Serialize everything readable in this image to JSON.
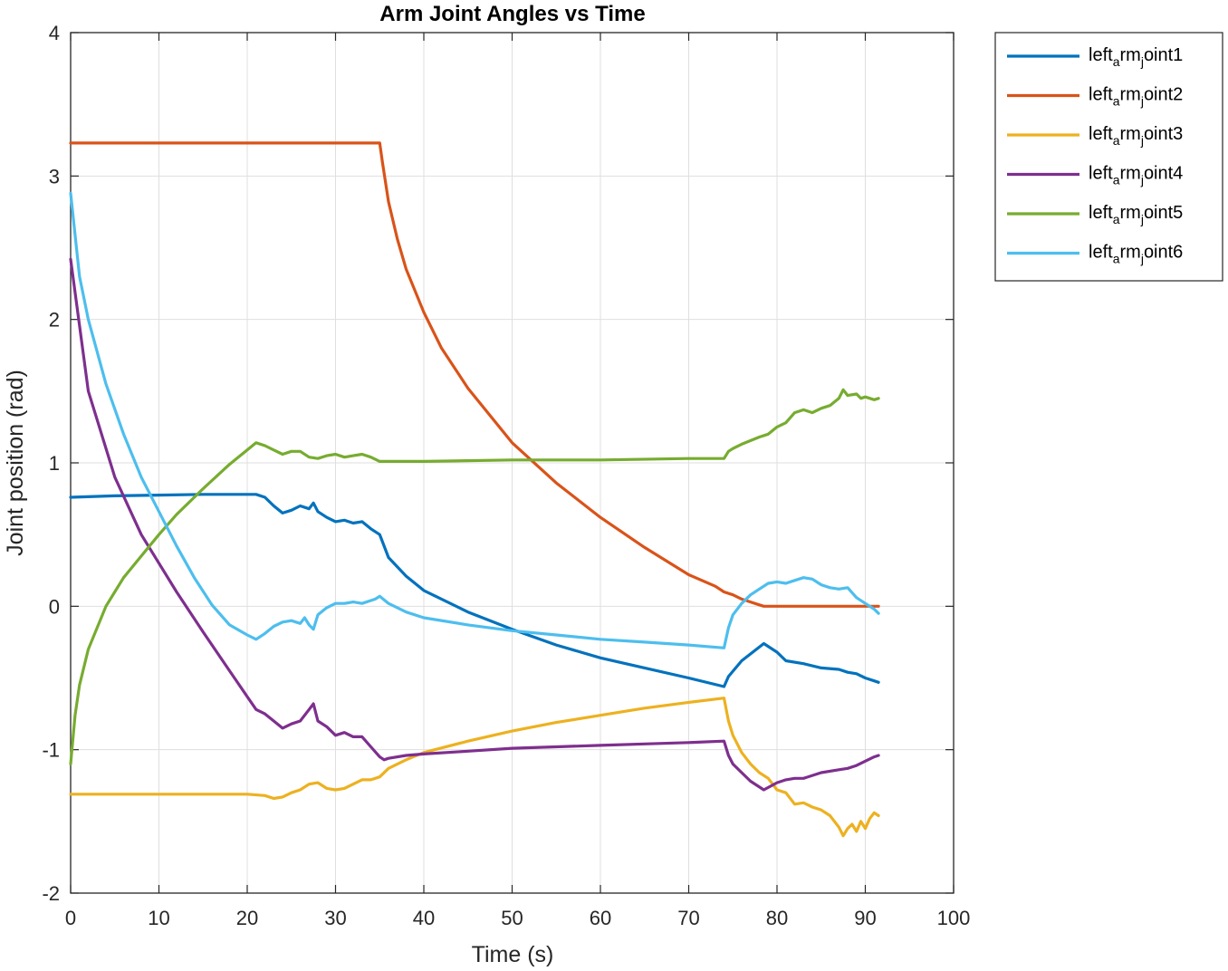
{
  "chart_data": {
    "type": "line",
    "title": "Arm Joint Angles vs Time",
    "xlabel": "Time (s)",
    "ylabel": "Joint position (rad)",
    "xlim": [
      0,
      100
    ],
    "ylim": [
      -2,
      4
    ],
    "xticks": [
      "0",
      "10",
      "20",
      "30",
      "40",
      "50",
      "60",
      "70",
      "80",
      "90",
      "100"
    ],
    "yticks": [
      "-2",
      "-1",
      "0",
      "1",
      "2",
      "3",
      "4"
    ],
    "grid": true,
    "legend_position": "outside-top-right",
    "series": [
      {
        "name": "left_arm_joint1",
        "name_parts": [
          "left",
          "a",
          "rm",
          "j",
          "oint1"
        ],
        "color": "#0072BD",
        "x": [
          0,
          5,
          10,
          15,
          20,
          21,
          22,
          23,
          24,
          25,
          26,
          27,
          27.5,
          28,
          29,
          30,
          31,
          32,
          33,
          34,
          35,
          36,
          38,
          40,
          45,
          50,
          55,
          60,
          65,
          70,
          74,
          74.5,
          76,
          78.5,
          80,
          81,
          83,
          85,
          87,
          88,
          89,
          90,
          91,
          91.5
        ],
        "y": [
          0.76,
          0.77,
          0.775,
          0.78,
          0.78,
          0.78,
          0.76,
          0.7,
          0.65,
          0.67,
          0.7,
          0.68,
          0.72,
          0.66,
          0.62,
          0.59,
          0.6,
          0.58,
          0.59,
          0.54,
          0.5,
          0.34,
          0.21,
          0.11,
          -0.04,
          -0.16,
          -0.27,
          -0.36,
          -0.43,
          -0.5,
          -0.56,
          -0.49,
          -0.38,
          -0.26,
          -0.32,
          -0.38,
          -0.4,
          -0.43,
          -0.44,
          -0.46,
          -0.47,
          -0.5,
          -0.52,
          -0.53
        ]
      },
      {
        "name": "left_arm_joint2",
        "name_parts": [
          "left",
          "a",
          "rm",
          "j",
          "oint2"
        ],
        "color": "#D95319",
        "x": [
          0,
          10,
          20,
          30,
          35,
          35.3,
          36,
          37,
          38,
          40,
          42,
          45,
          50,
          55,
          60,
          65,
          70,
          73,
          74,
          75,
          76,
          77,
          78,
          78.5,
          80,
          85,
          90,
          91.5
        ],
        "y": [
          3.23,
          3.23,
          3.23,
          3.23,
          3.23,
          3.1,
          2.82,
          2.56,
          2.35,
          2.05,
          1.8,
          1.52,
          1.14,
          0.86,
          0.62,
          0.41,
          0.22,
          0.14,
          0.1,
          0.08,
          0.05,
          0.03,
          0.01,
          0.0,
          0.0,
          0.0,
          0.0,
          0.0
        ]
      },
      {
        "name": "left_arm_joint3",
        "name_parts": [
          "left",
          "a",
          "rm",
          "j",
          "oint3"
        ],
        "color": "#EDB120",
        "x": [
          0,
          10,
          20,
          22,
          23,
          24,
          25,
          26,
          27,
          28,
          29,
          30,
          31,
          32,
          33,
          34,
          35,
          36,
          38,
          40,
          45,
          50,
          55,
          60,
          65,
          70,
          74,
          74.5,
          75,
          76,
          77,
          78,
          79,
          80,
          81,
          82,
          83,
          84,
          85,
          86,
          87,
          87.5,
          88,
          88.5,
          89,
          89.5,
          90,
          90.5,
          91,
          91.5
        ],
        "y": [
          -1.31,
          -1.31,
          -1.31,
          -1.32,
          -1.34,
          -1.33,
          -1.3,
          -1.28,
          -1.24,
          -1.23,
          -1.27,
          -1.28,
          -1.27,
          -1.24,
          -1.21,
          -1.21,
          -1.19,
          -1.13,
          -1.07,
          -1.02,
          -0.94,
          -0.87,
          -0.81,
          -0.76,
          -0.71,
          -0.67,
          -0.64,
          -0.8,
          -0.9,
          -1.02,
          -1.1,
          -1.16,
          -1.2,
          -1.28,
          -1.3,
          -1.38,
          -1.37,
          -1.4,
          -1.42,
          -1.46,
          -1.54,
          -1.6,
          -1.55,
          -1.52,
          -1.57,
          -1.5,
          -1.55,
          -1.48,
          -1.44,
          -1.46
        ]
      },
      {
        "name": "left_arm_joint4",
        "name_parts": [
          "left",
          "a",
          "rm",
          "j",
          "oint4"
        ],
        "color": "#7E2F8E",
        "x": [
          0,
          2,
          5,
          8,
          10,
          12,
          15,
          18,
          20,
          21,
          22,
          23,
          24,
          25,
          26,
          27,
          27.5,
          28,
          29,
          30,
          31,
          32,
          33,
          34,
          35,
          35.5,
          36,
          38,
          40,
          45,
          50,
          55,
          60,
          65,
          70,
          74,
          74.5,
          75,
          76,
          77,
          78.5,
          80,
          81,
          82,
          83,
          85,
          87,
          88,
          89,
          90,
          91,
          91.5
        ],
        "y": [
          2.42,
          1.5,
          0.9,
          0.5,
          0.3,
          0.1,
          -0.18,
          -0.45,
          -0.63,
          -0.72,
          -0.75,
          -0.8,
          -0.85,
          -0.82,
          -0.8,
          -0.72,
          -0.68,
          -0.8,
          -0.84,
          -0.9,
          -0.88,
          -0.91,
          -0.91,
          -0.98,
          -1.05,
          -1.07,
          -1.06,
          -1.04,
          -1.03,
          -1.01,
          -0.99,
          -0.98,
          -0.97,
          -0.96,
          -0.95,
          -0.94,
          -1.04,
          -1.1,
          -1.16,
          -1.22,
          -1.28,
          -1.23,
          -1.21,
          -1.2,
          -1.2,
          -1.16,
          -1.14,
          -1.13,
          -1.11,
          -1.08,
          -1.05,
          -1.04
        ]
      },
      {
        "name": "left_arm_joint5",
        "name_parts": [
          "left",
          "a",
          "rm",
          "j",
          "oint5"
        ],
        "color": "#77AC30",
        "x": [
          0,
          0.5,
          1,
          2,
          4,
          6,
          8,
          10,
          12,
          15,
          18,
          20,
          21,
          22,
          23,
          24,
          25,
          26,
          27,
          28,
          29,
          30,
          31,
          32,
          33,
          34,
          35,
          36,
          40,
          50,
          60,
          70,
          74,
          74.5,
          75,
          76,
          78,
          79,
          80,
          81,
          82,
          83,
          84,
          85,
          86,
          87,
          87.5,
          88,
          89,
          89.5,
          90,
          91,
          91.5
        ],
        "y": [
          -1.1,
          -0.76,
          -0.55,
          -0.3,
          0.0,
          0.2,
          0.35,
          0.5,
          0.64,
          0.82,
          0.99,
          1.09,
          1.14,
          1.12,
          1.09,
          1.06,
          1.08,
          1.08,
          1.04,
          1.03,
          1.05,
          1.06,
          1.04,
          1.05,
          1.06,
          1.04,
          1.01,
          1.01,
          1.01,
          1.02,
          1.02,
          1.03,
          1.03,
          1.08,
          1.1,
          1.13,
          1.18,
          1.2,
          1.25,
          1.28,
          1.35,
          1.37,
          1.35,
          1.38,
          1.4,
          1.45,
          1.51,
          1.47,
          1.48,
          1.45,
          1.46,
          1.44,
          1.45
        ]
      },
      {
        "name": "left_arm_joint6",
        "name_parts": [
          "left",
          "a",
          "rm",
          "j",
          "oint6"
        ],
        "color": "#4DBEEE",
        "x": [
          0,
          1,
          2,
          4,
          6,
          8,
          10,
          12,
          14,
          16,
          18,
          20,
          21,
          22,
          23,
          24,
          25,
          26,
          26.5,
          27,
          27.5,
          28,
          29,
          30,
          31,
          32,
          33,
          34,
          34.5,
          35,
          36,
          38,
          40,
          45,
          50,
          55,
          60,
          65,
          70,
          74,
          74.5,
          75,
          76,
          77,
          78,
          79,
          80,
          81,
          82,
          83,
          84,
          85,
          86,
          87,
          88,
          89,
          90,
          91,
          91.5
        ],
        "y": [
          2.88,
          2.3,
          2.0,
          1.55,
          1.2,
          0.9,
          0.66,
          0.42,
          0.2,
          0.01,
          -0.13,
          -0.2,
          -0.23,
          -0.19,
          -0.14,
          -0.11,
          -0.1,
          -0.12,
          -0.08,
          -0.13,
          -0.16,
          -0.06,
          -0.01,
          0.02,
          0.02,
          0.03,
          0.02,
          0.04,
          0.05,
          0.07,
          0.02,
          -0.04,
          -0.08,
          -0.13,
          -0.17,
          -0.2,
          -0.23,
          -0.25,
          -0.27,
          -0.29,
          -0.15,
          -0.06,
          0.02,
          0.08,
          0.12,
          0.16,
          0.17,
          0.16,
          0.18,
          0.2,
          0.19,
          0.15,
          0.13,
          0.12,
          0.13,
          0.06,
          0.02,
          -0.02,
          -0.05
        ]
      }
    ]
  }
}
